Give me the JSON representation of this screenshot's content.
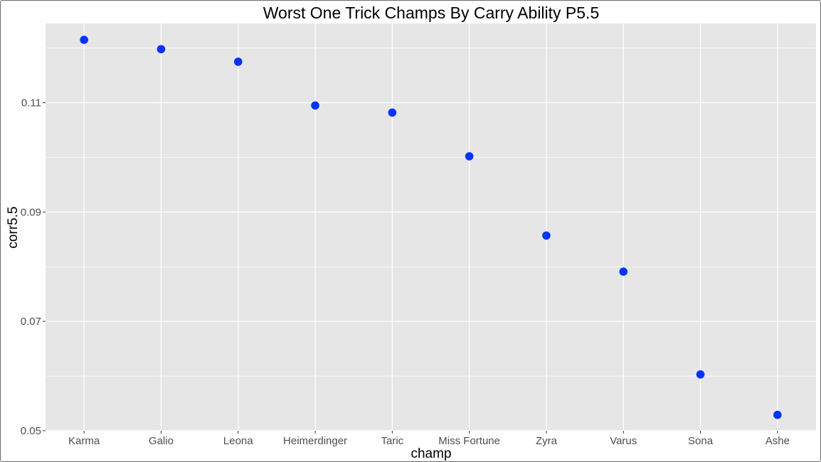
{
  "chart_data": {
    "type": "scatter",
    "title": "Worst One Trick Champs By Carry Ability P5.5",
    "xlabel": "champ",
    "ylabel": "corr5.5",
    "categories": [
      "Karma",
      "Galio",
      "Leona",
      "Heimerdinger",
      "Taric",
      "Miss Fortune",
      "Zyra",
      "Varus",
      "Sona",
      "Ashe"
    ],
    "values": [
      0.1215,
      0.1198,
      0.1175,
      0.1095,
      0.1082,
      0.1002,
      0.0857,
      0.0791,
      0.0603,
      0.0529
    ],
    "yticks": [
      0.05,
      0.07,
      0.09,
      0.11
    ],
    "ytick_labels": [
      "0.05",
      "0.07",
      "0.09",
      "0.11"
    ],
    "ylim": [
      0.05,
      0.1245
    ],
    "grid": true,
    "point_color": "#0033ff",
    "panel_color": "#e6e6e6",
    "grid_color": "#ffffff"
  }
}
